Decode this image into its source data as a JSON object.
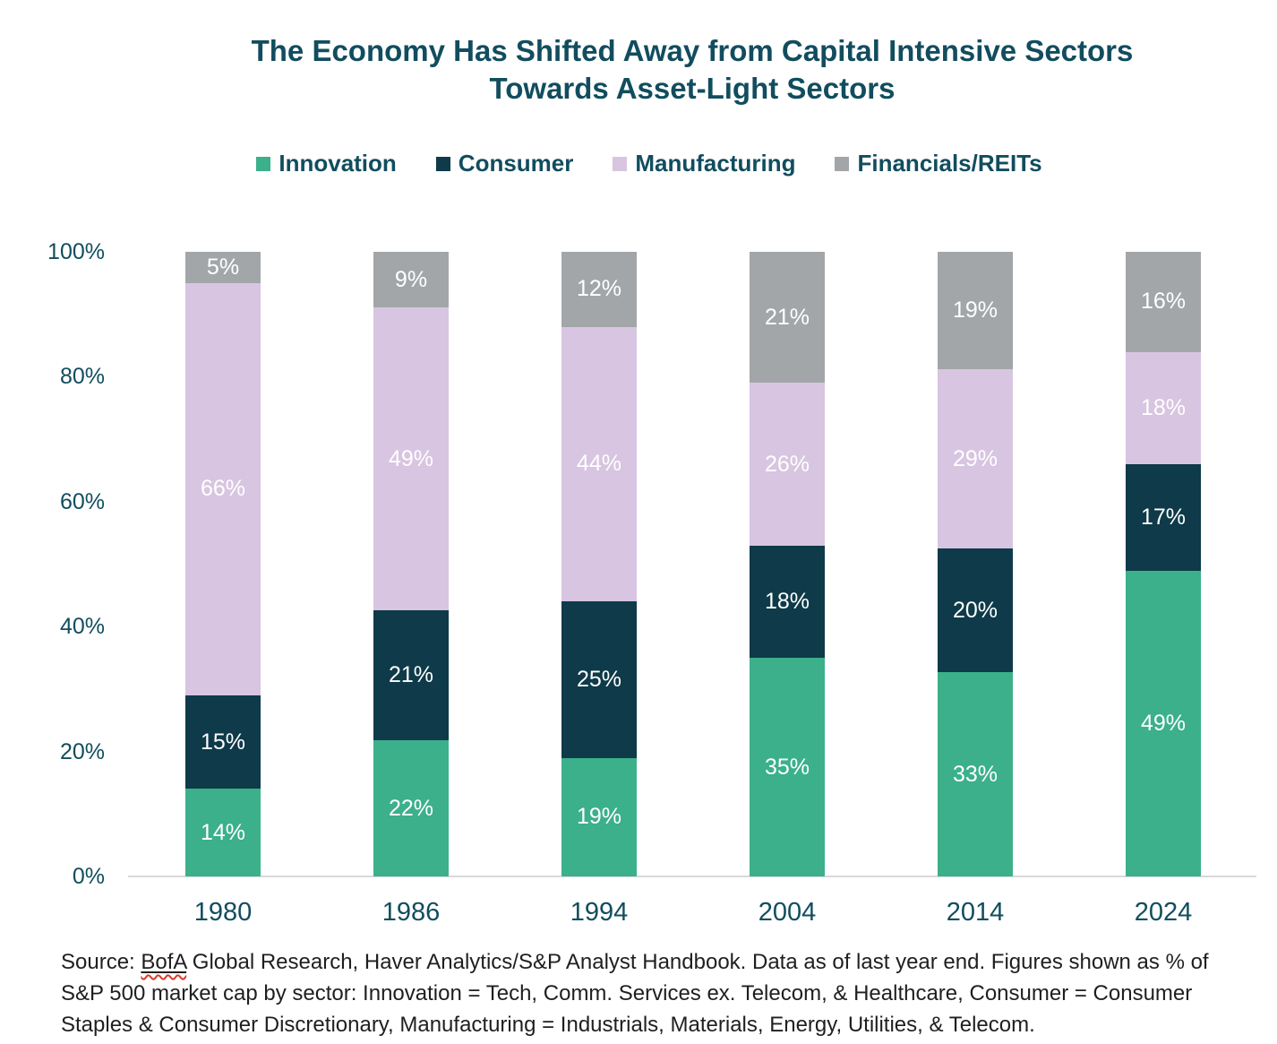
{
  "title": {
    "line1": "The Economy Has Shifted Away from Capital Intensive Sectors",
    "line2": "Towards Asset-Light Sectors"
  },
  "chart_data": {
    "type": "bar",
    "subtype": "stacked-100",
    "categories": [
      "1980",
      "1986",
      "1994",
      "2004",
      "2014",
      "2024"
    ],
    "series": [
      {
        "name": "Innovation",
        "color": "#3bb08b",
        "values": [
          14,
          22,
          19,
          35,
          33,
          49
        ]
      },
      {
        "name": "Consumer",
        "color": "#0e3a49",
        "values": [
          15,
          21,
          25,
          18,
          20,
          17
        ]
      },
      {
        "name": "Manufacturing",
        "color": "#d8c5e1",
        "values": [
          66,
          49,
          44,
          26,
          29,
          18
        ]
      },
      {
        "name": "Financials/REITs",
        "color": "#a3a6a9",
        "values": [
          5,
          9,
          12,
          21,
          19,
          16
        ]
      }
    ],
    "stack_order_bottom_to_top": [
      "Innovation",
      "Consumer",
      "Manufacturing",
      "Financials/REITs"
    ],
    "value_suffix": "%",
    "y_ticks": [
      "0%",
      "20%",
      "40%",
      "60%",
      "80%",
      "100%"
    ],
    "ylim": [
      0,
      100
    ],
    "grid": false,
    "legend_position": "top",
    "xlabel": "",
    "ylabel": ""
  },
  "source": {
    "line1_prefix": "Source: ",
    "line1_link": "BofA",
    "line1_rest": " Global Research, Haver Analytics/S&P Analyst Handbook. Data as of last year end. Figures shown as % of",
    "line2": "S&P 500 market cap by sector: Innovation = Tech, Comm. Services ex. Telecom, & Healthcare, Consumer = Consumer",
    "line3": "Staples & Consumer Discretionary, Manufacturing = Industrials, Materials, Energy, Utilities, & Telecom."
  },
  "colors": {
    "heading_text": "#114d5e",
    "axis_line": "#d9d9d9",
    "bar_label_text": "#ffffff",
    "source_text": "#1f1f1f",
    "squiggle_red": "#d93a2b"
  }
}
